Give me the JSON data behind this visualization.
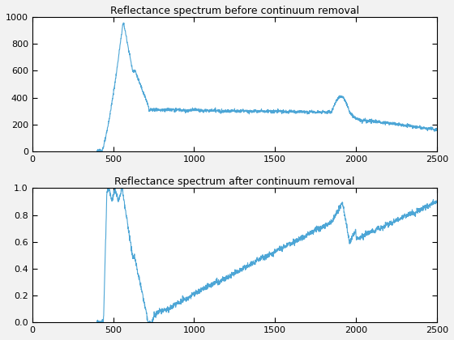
{
  "title1": "Reflectance spectrum before continuum removal",
  "title2": "Reflectance spectrum after continuum removal",
  "xlim": [
    0,
    2500
  ],
  "ylim1": [
    0,
    1000
  ],
  "ylim2": [
    0,
    1
  ],
  "line_color": "#4DA6D6",
  "line_width": 0.8,
  "bg_color": "white",
  "fig_bg_color": "#F2F2F2",
  "yticks1": [
    0,
    200,
    400,
    600,
    800,
    1000
  ],
  "yticks2": [
    0,
    0.2,
    0.4,
    0.6,
    0.8,
    1.0
  ],
  "xticks": [
    0,
    500,
    1000,
    1500,
    2000,
    2500
  ]
}
